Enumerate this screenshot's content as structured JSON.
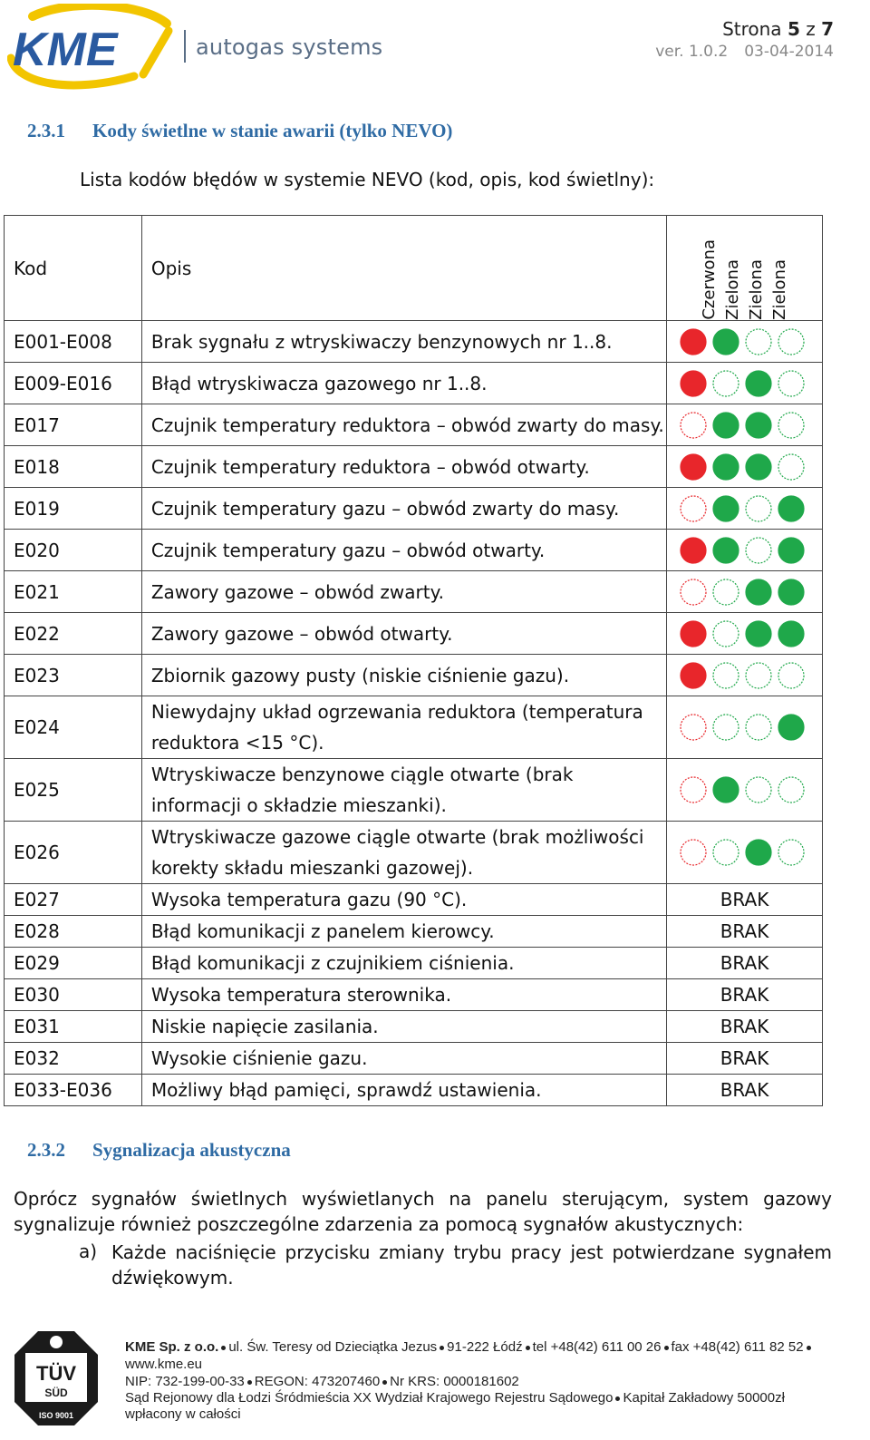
{
  "header": {
    "logo_text": "KME",
    "tagline": "autogas systems",
    "page_prefix": "Strona",
    "page_current": "5",
    "page_of": "z",
    "page_total": "7",
    "version": "ver. 1.0.2",
    "date": "03-04-2014"
  },
  "section1": {
    "number": "2.3.1",
    "title": "Kody świetlne w stanie awarii (tylko NEVO)",
    "intro": "Lista kodów błędów w systemie NEVO (kod, opis, kod świetlny):"
  },
  "table": {
    "col_code": "Kod",
    "col_desc": "Opis",
    "light_headers": [
      "Czerwona",
      "Zielona",
      "Zielona",
      "Zielona"
    ],
    "lamp_colors": {
      "red": "#e8262b",
      "green": "#1fa84a",
      "red_outline": "#e8262b",
      "green_outline": "#1fa84a"
    },
    "rows": [
      {
        "code": "E001-E008",
        "desc": "Brak sygnału z wtryskiwaczy benzynowych nr 1..8.",
        "lamps": [
          1,
          1,
          0,
          0
        ]
      },
      {
        "code": "E009-E016",
        "desc": "Błąd wtryskiwacza gazowego nr 1..8.",
        "lamps": [
          1,
          0,
          1,
          0
        ]
      },
      {
        "code": "E017",
        "desc": "Czujnik temperatury reduktora – obwód zwarty do masy.",
        "lamps": [
          0,
          1,
          1,
          0
        ]
      },
      {
        "code": "E018",
        "desc": "Czujnik temperatury reduktora – obwód otwarty.",
        "lamps": [
          1,
          1,
          1,
          0
        ]
      },
      {
        "code": "E019",
        "desc": "Czujnik temperatury gazu – obwód zwarty do masy.",
        "lamps": [
          0,
          1,
          0,
          1
        ]
      },
      {
        "code": "E020",
        "desc": "Czujnik temperatury gazu – obwód otwarty.",
        "lamps": [
          1,
          1,
          0,
          1
        ]
      },
      {
        "code": "E021",
        "desc": "Zawory gazowe – obwód zwarty.",
        "lamps": [
          0,
          0,
          1,
          1
        ]
      },
      {
        "code": "E022",
        "desc": "Zawory gazowe – obwód otwarty.",
        "lamps": [
          1,
          0,
          1,
          1
        ]
      },
      {
        "code": "E023",
        "desc": "Zbiornik gazowy pusty (niskie ciśnienie gazu).",
        "lamps": [
          1,
          0,
          0,
          0
        ]
      },
      {
        "code": "E024",
        "desc": "Niewydajny układ ogrzewania reduktora (temperatura reduktora <15 °C).",
        "lamps": [
          0,
          0,
          0,
          1
        ]
      },
      {
        "code": "E025",
        "desc": "Wtryskiwacze benzynowe ciągle otwarte (brak informacji o składzie mieszanki).",
        "lamps": [
          0,
          1,
          0,
          0
        ]
      },
      {
        "code": "E026",
        "desc": "Wtryskiwacze gazowe ciągle otwarte (brak możliwości korekty składu mieszanki gazowej).",
        "lamps": [
          0,
          0,
          1,
          0
        ]
      },
      {
        "code": "E027",
        "desc": "Wysoka temperatura gazu (90 °C).",
        "brak": "BRAK"
      },
      {
        "code": "E028",
        "desc": "Błąd komunikacji z panelem kierowcy.",
        "brak": "BRAK"
      },
      {
        "code": "E029",
        "desc": "Błąd komunikacji z czujnikiem ciśnienia.",
        "brak": "BRAK"
      },
      {
        "code": "E030",
        "desc": "Wysoka temperatura sterownika.",
        "brak": "BRAK"
      },
      {
        "code": "E031",
        "desc": "Niskie napięcie zasilania.",
        "brak": "BRAK"
      },
      {
        "code": "E032",
        "desc": "Wysokie ciśnienie gazu.",
        "brak": "BRAK"
      },
      {
        "code": "E033-E036",
        "desc": "Możliwy błąd pamięci, sprawdź ustawienia.",
        "brak": "BRAK"
      }
    ]
  },
  "section2": {
    "number": "2.3.2",
    "title": "Sygnalizacja akustyczna",
    "para_line1": "Oprócz sygnałów świetlnych wyświetlanych na panelu sterującym, system gazowy",
    "para_line2": "sygnalizuje również poszczególne zdarzenia za pomocą sygnałów akustycznych:",
    "item_marker": "a)",
    "item_line1": "Każde naciśnięcie przycisku zmiany trybu pracy jest potwierdzane sygnałem",
    "item_line2": "dźwiękowym."
  },
  "footer": {
    "company": "KME Sp. z o.o.",
    "address": "ul. Św. Teresy od Dzieciątka Jezus",
    "city": "91-222 Łódź",
    "tel": "tel +48(42) 611 00 26",
    "fax": "fax +48(42) 611 82 52",
    "web": "www.kme.eu",
    "nip": "NIP: 732-199-00-33",
    "regon": "REGON: 473207460",
    "krs": "Nr KRS: 0000181602",
    "court": "Sąd Rejonowy dla Łodzi Śródmieścia XX Wydział Krajowego Rejestru Sądowego",
    "capital": "Kapitał Zakładowy 50000zł",
    "paid": "wpłacony w całości",
    "cert_name": "TÜV",
    "cert_sub": "SÜD",
    "cert_iso": "ISO 9001"
  }
}
